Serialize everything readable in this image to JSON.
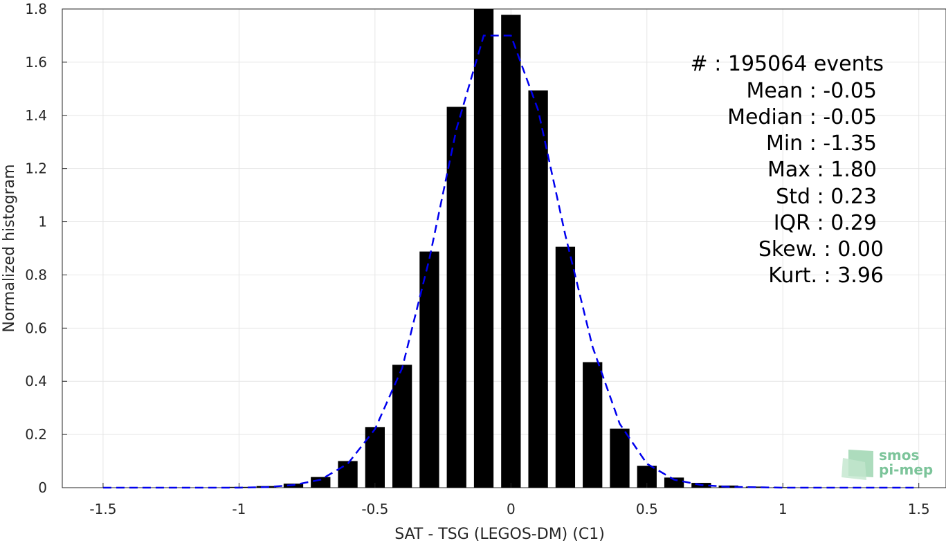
{
  "chart_data": {
    "type": "bar",
    "xlabel": "SAT - TSG (LEGOS-DM) (C1)",
    "ylabel": "Normalized histogram",
    "xlim": [
      -1.65,
      1.6
    ],
    "ylim": [
      0,
      1.8
    ],
    "xticks": [
      -1.5,
      -1,
      -0.5,
      0,
      0.5,
      1,
      1.5
    ],
    "xtick_labels": [
      "-1.5",
      "-1",
      "-0.5",
      "0",
      "0.5",
      "1",
      "1.5"
    ],
    "yticks": [
      0,
      0.2,
      0.4,
      0.6,
      0.8,
      1,
      1.2,
      1.4,
      1.6,
      1.8
    ],
    "ytick_labels": [
      "0",
      "0.2",
      "0.4",
      "0.6",
      "0.8",
      "1",
      "1.2",
      "1.4",
      "1.6",
      "1.8"
    ],
    "grid": true,
    "bar_color": "#000000",
    "bars": {
      "x": [
        -1.5,
        -1.4,
        -1.3,
        -1.2,
        -1.1,
        -1.0,
        -0.9,
        -0.8,
        -0.7,
        -0.6,
        -0.5,
        -0.4,
        -0.3,
        -0.2,
        -0.1,
        0.0,
        0.1,
        0.2,
        0.3,
        0.4,
        0.5,
        0.6,
        0.7,
        0.8,
        0.9,
        1.0,
        1.1,
        1.2,
        1.3,
        1.4,
        1.5
      ],
      "values": [
        0.0,
        0.0,
        0.0,
        0.0,
        0.0,
        0.003,
        0.006,
        0.015,
        0.04,
        0.1,
        0.228,
        0.462,
        0.888,
        1.432,
        1.8,
        1.778,
        1.494,
        0.906,
        0.472,
        0.222,
        0.082,
        0.038,
        0.018,
        0.008,
        0.004,
        0.002,
        0.001,
        0.0,
        0.0,
        0.0,
        0.0
      ]
    },
    "fit_line": {
      "style": "dashed",
      "color": "#0000ee",
      "x": [
        -1.5,
        -1.0,
        -0.9,
        -0.8,
        -0.7,
        -0.6,
        -0.5,
        -0.4,
        -0.3,
        -0.2,
        -0.1,
        -0.05,
        0.0,
        0.1,
        0.2,
        0.3,
        0.4,
        0.5,
        0.6,
        0.7,
        0.8,
        1.0,
        1.5
      ],
      "y": [
        0.0,
        0.0,
        0.002,
        0.01,
        0.03,
        0.09,
        0.22,
        0.45,
        0.86,
        1.35,
        1.7,
        1.7,
        1.7,
        1.42,
        0.95,
        0.53,
        0.24,
        0.09,
        0.03,
        0.01,
        0.003,
        0.0,
        0.0
      ]
    }
  },
  "stats": {
    "events": "#  : 195064 events",
    "mean": "Mean : -0.05",
    "median": "Median : -0.05",
    "min": "Min : -1.35",
    "max": "Max : 1.80",
    "std": "Std : 0.23",
    "iqr": "IQR : 0.29",
    "skew": "Skew. : 0.00",
    "kurt": "Kurt. : 3.96"
  },
  "logo": {
    "line1": "smos",
    "line2": "pi-mep"
  }
}
